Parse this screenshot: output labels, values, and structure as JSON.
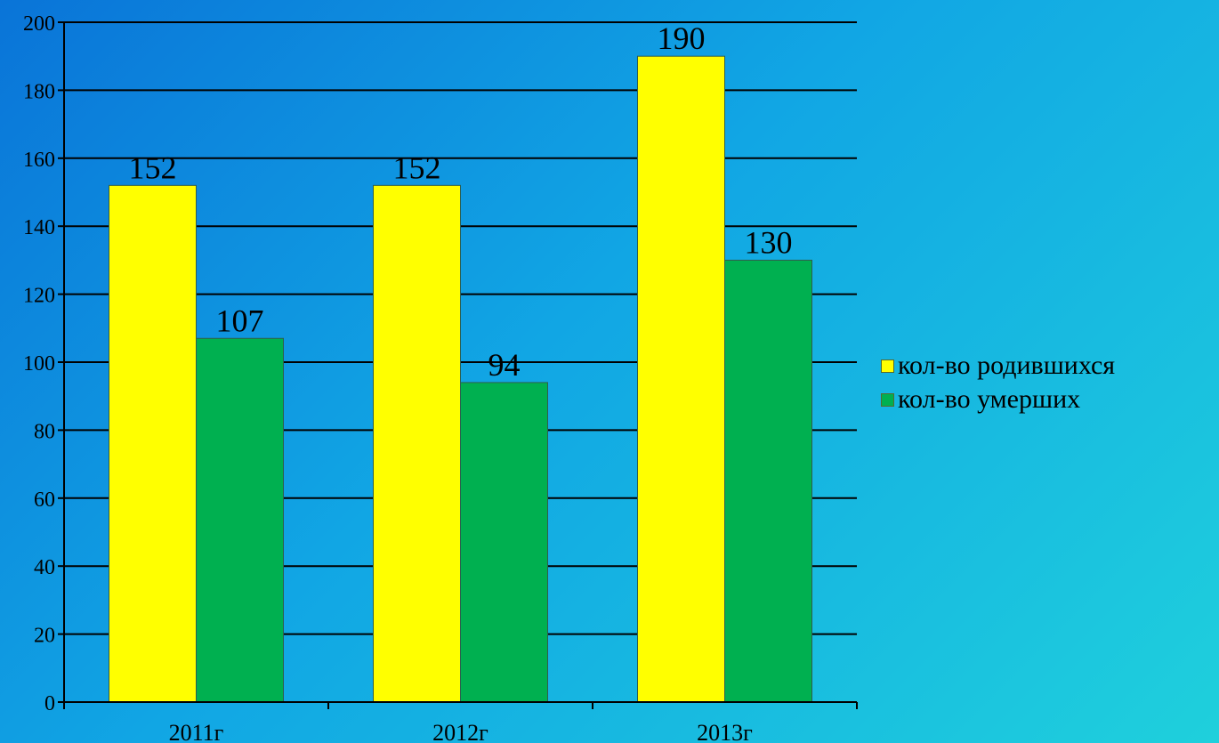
{
  "chart_data": {
    "type": "bar",
    "categories": [
      "2011г",
      "2012г",
      "2013г"
    ],
    "series": [
      {
        "name": "кол-во родившихся",
        "values": [
          152,
          152,
          190
        ],
        "color": "#ffff00"
      },
      {
        "name": "кол-во умерших",
        "values": [
          107,
          94,
          130
        ],
        "color": "#00b050"
      }
    ],
    "ylim": [
      0,
      200
    ],
    "yticks": [
      0,
      20,
      40,
      60,
      80,
      100,
      120,
      140,
      160,
      180,
      200
    ],
    "grid": true,
    "data_labels": true,
    "legend_position": "right"
  }
}
